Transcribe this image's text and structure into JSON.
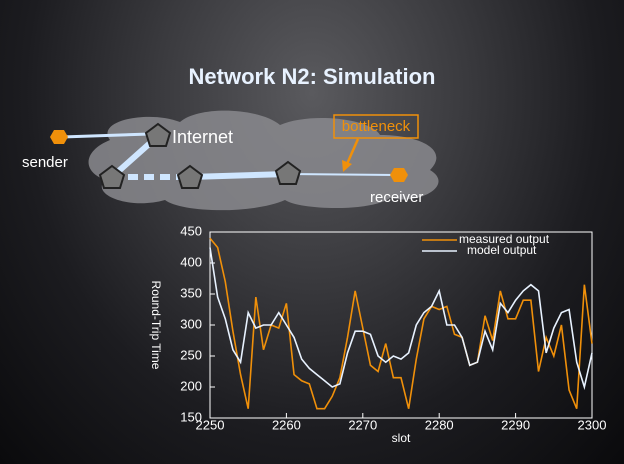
{
  "title": "Network N2: Simulation",
  "diagram": {
    "sender": "sender",
    "internet": "Internet",
    "bottleneck": "bottleneck",
    "receiver": "receiver"
  },
  "chart_data": {
    "type": "line",
    "xlabel": "slot",
    "ylabel": "Round-Trip Time",
    "x": [
      2250,
      2251,
      2252,
      2253,
      2254,
      2255,
      2256,
      2257,
      2258,
      2259,
      2260,
      2261,
      2262,
      2263,
      2264,
      2265,
      2266,
      2267,
      2268,
      2269,
      2270,
      2271,
      2272,
      2273,
      2274,
      2275,
      2276,
      2277,
      2278,
      2279,
      2280,
      2281,
      2282,
      2283,
      2284,
      2285,
      2286,
      2287,
      2288,
      2289,
      2290,
      2291,
      2292,
      2293,
      2294,
      2295,
      2296,
      2297,
      2298,
      2299,
      2300
    ],
    "series": [
      {
        "name": "measured output",
        "color": "#f0900a",
        "values": [
          440,
          425,
          370,
          290,
          220,
          165,
          345,
          260,
          300,
          295,
          335,
          220,
          210,
          205,
          165,
          165,
          185,
          215,
          280,
          355,
          295,
          235,
          225,
          270,
          215,
          215,
          165,
          245,
          310,
          330,
          325,
          330,
          285,
          280,
          235,
          240,
          315,
          275,
          355,
          310,
          310,
          340,
          340,
          225,
          280,
          250,
          300,
          195,
          165,
          365,
          270
        ]
      },
      {
        "name": "model output",
        "color": "#e8f2ff",
        "values": [
          425,
          345,
          310,
          260,
          240,
          320,
          295,
          300,
          300,
          320,
          300,
          280,
          245,
          230,
          220,
          210,
          200,
          205,
          255,
          290,
          290,
          285,
          250,
          240,
          250,
          245,
          255,
          300,
          320,
          330,
          355,
          300,
          300,
          280,
          235,
          240,
          290,
          260,
          335,
          320,
          340,
          355,
          365,
          355,
          255,
          295,
          320,
          325,
          240,
          200,
          255
        ]
      }
    ],
    "xlim": [
      2250,
      2300
    ],
    "xticks": [
      2250,
      2260,
      2270,
      2280,
      2290,
      2300
    ],
    "ylim": [
      150,
      450
    ],
    "yticks": [
      150,
      200,
      250,
      300,
      350,
      400,
      450
    ],
    "legend": "upper right"
  }
}
